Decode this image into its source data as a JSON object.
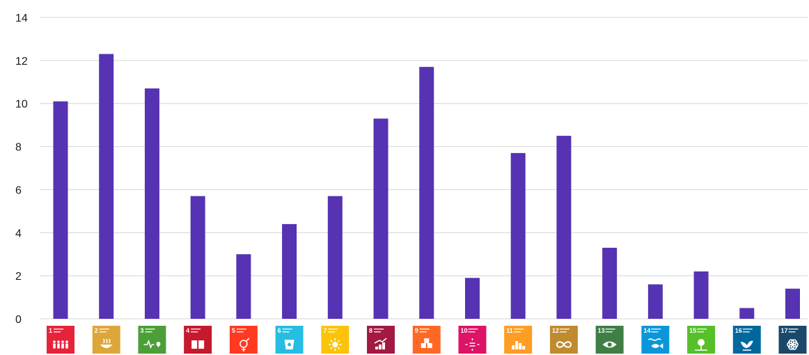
{
  "chart_data": {
    "type": "bar",
    "title": "",
    "xlabel": "",
    "ylabel": "",
    "ylim": [
      0,
      14
    ],
    "yticks": [
      0,
      2,
      4,
      6,
      8,
      10,
      12,
      14
    ],
    "grid": true,
    "bar_color": "#5533b3",
    "categories": [
      "1",
      "2",
      "3",
      "4",
      "5",
      "6",
      "7",
      "8",
      "9",
      "10",
      "11",
      "12",
      "13",
      "14",
      "15",
      "16",
      "17"
    ],
    "values": [
      10.1,
      12.3,
      10.7,
      5.7,
      3.0,
      4.4,
      5.7,
      9.3,
      11.7,
      1.9,
      7.7,
      8.5,
      3.3,
      1.6,
      2.2,
      0.5,
      1.4
    ],
    "category_colors": [
      "#e5243b",
      "#dda63a",
      "#4c9f38",
      "#c5192d",
      "#ff3a21",
      "#26bde2",
      "#fcc30b",
      "#a21942",
      "#fd6925",
      "#dd1367",
      "#fd9d24",
      "#bf8b2e",
      "#3f7e44",
      "#0a97d9",
      "#56c02b",
      "#00689d",
      "#19486a"
    ],
    "category_icons": [
      "people-icon",
      "bowl-icon",
      "heartbeat-icon",
      "book-icon",
      "gender-icon",
      "water-drop-icon",
      "sun-icon",
      "growth-chart-icon",
      "cubes-icon",
      "equality-arrows-icon",
      "city-icon",
      "infinity-icon",
      "eye-globe-icon",
      "fish-icon",
      "tree-icon",
      "dove-icon",
      "flower-icon"
    ]
  }
}
